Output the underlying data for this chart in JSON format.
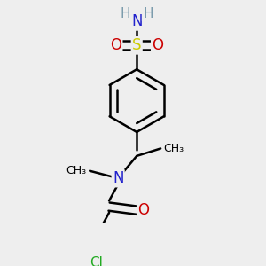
{
  "background_color": "#eeeeee",
  "bond_color": "#000000",
  "colors": {
    "N": "#2222cc",
    "O": "#cc0000",
    "S": "#cccc00",
    "Cl": "#22aa22",
    "C": "#000000",
    "H": "#7799aa"
  },
  "fig_size": [
    3.0,
    3.0
  ],
  "dpi": 100
}
